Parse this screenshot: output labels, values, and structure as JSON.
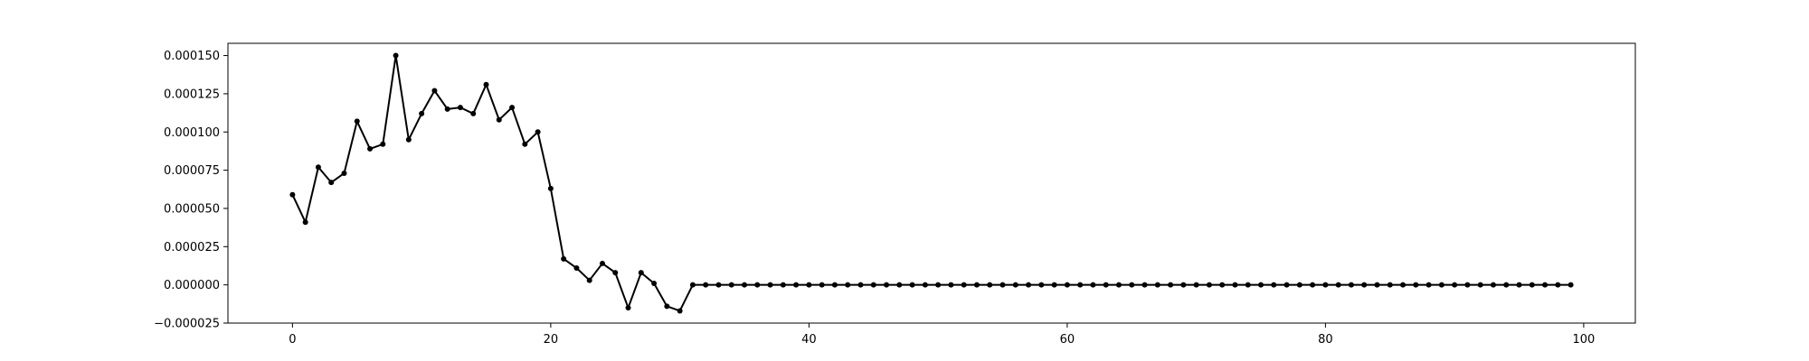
{
  "chart_data": {
    "type": "line",
    "title": "",
    "xlabel": "",
    "ylabel": "",
    "xlim": [
      -5,
      104
    ],
    "ylim": [
      -2.5e-05,
      0.000158
    ],
    "xticks": [
      0,
      20,
      40,
      60,
      80,
      100
    ],
    "xtick_labels": [
      "0",
      "20",
      "40",
      "60",
      "80",
      "100"
    ],
    "yticks": [
      -2.5e-05,
      0,
      2.5e-05,
      5e-05,
      7.5e-05,
      0.0001,
      0.000125,
      0.00015
    ],
    "ytick_labels": [
      "−0.000025",
      "0.000000",
      "0.000025",
      "0.000050",
      "0.000075",
      "0.000100",
      "0.000125",
      "0.000150"
    ],
    "grid": false,
    "legend": "none",
    "line_color": "#000000",
    "marker": "dot",
    "series": [
      {
        "x": [
          0,
          1,
          2,
          3,
          4,
          5,
          6,
          7,
          8,
          9,
          10,
          11,
          12,
          13,
          14,
          15,
          16,
          17,
          18,
          19,
          20,
          21,
          22,
          23,
          24,
          25,
          26,
          27,
          28,
          29,
          30,
          31,
          32,
          33,
          34,
          35,
          36,
          37,
          38,
          39,
          40,
          41,
          42,
          43,
          44,
          45,
          46,
          47,
          48,
          49,
          50,
          51,
          52,
          53,
          54,
          55,
          56,
          57,
          58,
          59,
          60,
          61,
          62,
          63,
          64,
          65,
          66,
          67,
          68,
          69,
          70,
          71,
          72,
          73,
          74,
          75,
          76,
          77,
          78,
          79,
          80,
          81,
          82,
          83,
          84,
          85,
          86,
          87,
          88,
          89,
          90,
          91,
          92,
          93,
          94,
          95,
          96,
          97,
          98,
          99
        ],
        "values": [
          5.9e-05,
          4.1e-05,
          7.7e-05,
          6.7e-05,
          7.3e-05,
          0.000107,
          8.9e-05,
          9.2e-05,
          0.00015,
          9.5e-05,
          0.000112,
          0.000127,
          0.000115,
          0.000116,
          0.000112,
          0.000131,
          0.000108,
          0.000116,
          9.2e-05,
          0.0001,
          6.3e-05,
          1.7e-05,
          1.1e-05,
          3e-06,
          1.4e-05,
          8e-06,
          -1.5e-05,
          8e-06,
          1e-06,
          -1.4e-05,
          -1.7e-05,
          0,
          0,
          0,
          0,
          0,
          0,
          0,
          0,
          0,
          0,
          0,
          0,
          0,
          0,
          0,
          0,
          0,
          0,
          0,
          0,
          0,
          0,
          0,
          0,
          0,
          0,
          0,
          0,
          0,
          0,
          0,
          0,
          0,
          0,
          0,
          0,
          0,
          0,
          0,
          0,
          0,
          0,
          0,
          0,
          0,
          0,
          0,
          0,
          0,
          0,
          0,
          0,
          0,
          0,
          0,
          0,
          0,
          0,
          0,
          0,
          0,
          0,
          0,
          0,
          0,
          0,
          0,
          0,
          0
        ]
      }
    ]
  }
}
